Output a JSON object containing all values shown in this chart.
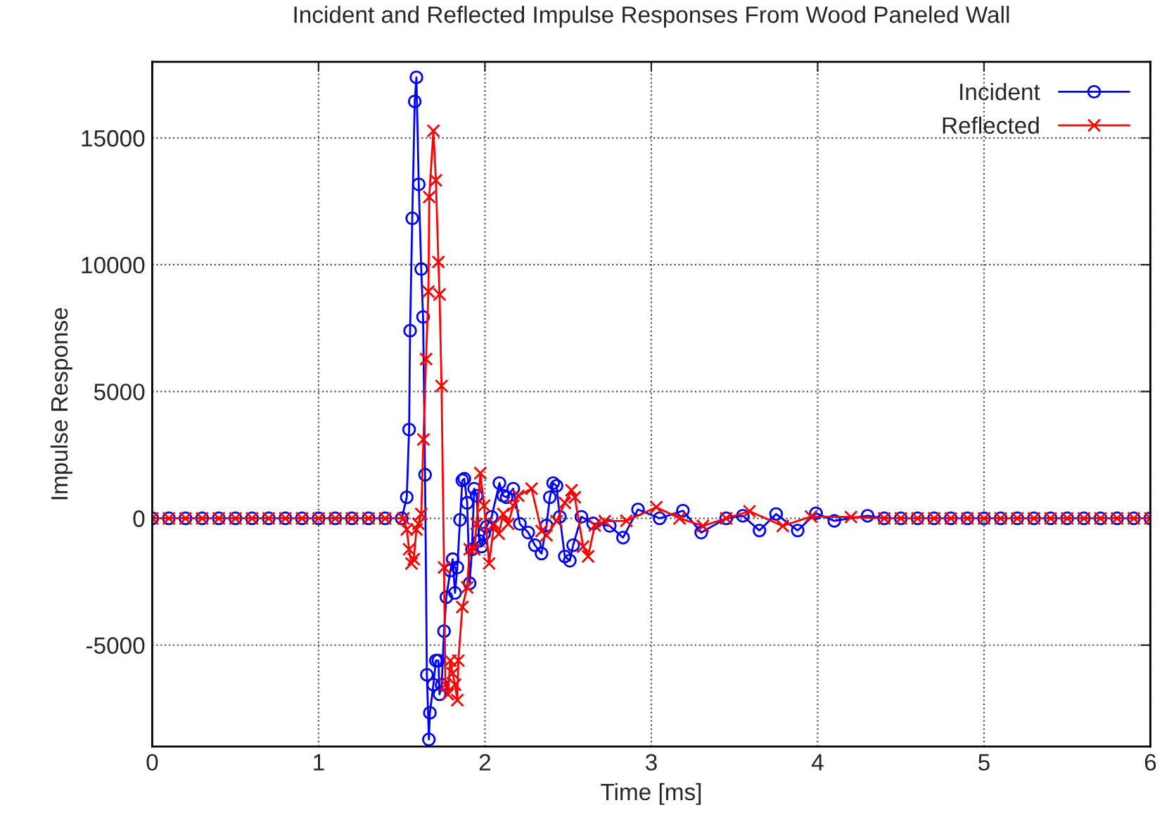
{
  "chart_data": {
    "type": "line",
    "title": "Incident and Reflected Impulse Responses From Wood Paneled Wall",
    "xlabel": "Time [ms]",
    "ylabel": "Impulse Response",
    "xlim": [
      0,
      6
    ],
    "xticks": [
      0,
      1,
      2,
      3,
      4,
      5,
      6
    ],
    "ylim": [
      -9000,
      18000
    ],
    "yticks": [
      -5000,
      0,
      5000,
      10000,
      15000
    ],
    "grid": true,
    "legend": "top right",
    "line_style": "solid",
    "series": [
      {
        "name": "Incident",
        "color": "#0000ff",
        "marker": "circle",
        "x": [
          0,
          0.1,
          0.2,
          0.3,
          0.4,
          0.5,
          0.6,
          0.7,
          0.8,
          0.9,
          1.0,
          1.1,
          1.2,
          1.3,
          1.4,
          1.5,
          1.53,
          1.544,
          1.55,
          1.563,
          1.578,
          1.588,
          1.602,
          1.617,
          1.628,
          1.64,
          1.651,
          1.663,
          1.669,
          1.69,
          1.705,
          1.72,
          1.727,
          1.74,
          1.754,
          1.768,
          1.792,
          1.806,
          1.82,
          1.834,
          1.85,
          1.864,
          1.876,
          1.893,
          1.908,
          1.922,
          1.935,
          1.95,
          1.966,
          1.98,
          1.995,
          2.01,
          2.04,
          2.087,
          2.11,
          2.13,
          2.17,
          2.21,
          2.26,
          2.3,
          2.34,
          2.37,
          2.39,
          2.41,
          2.43,
          2.45,
          2.48,
          2.51,
          2.53,
          2.58,
          2.65,
          2.75,
          2.83,
          2.92,
          3.05,
          3.19,
          3.3,
          3.45,
          3.55,
          3.65,
          3.75,
          3.88,
          3.99,
          4.1,
          4.3,
          4.4,
          4.5,
          4.6,
          4.7,
          4.8,
          4.9,
          5.0,
          5.1,
          5.2,
          5.3,
          5.4,
          5.5,
          5.6,
          5.7,
          5.8,
          5.9,
          6.0
        ],
        "values": [
          0,
          0,
          0,
          0,
          0,
          0,
          0,
          0,
          0,
          0,
          0,
          0,
          0,
          0,
          0,
          0,
          830,
          3500,
          7400,
          11830,
          16440,
          17390,
          13170,
          9830,
          7940,
          1720,
          -6170,
          -8720,
          -7670,
          -6560,
          -5610,
          -5610,
          -6940,
          -6560,
          -4450,
          -3110,
          -2060,
          -1610,
          -2940,
          -1940,
          -60,
          1500,
          1560,
          610,
          -2560,
          -1220,
          1170,
          890,
          -890,
          -1110,
          -610,
          -330,
          60,
          1390,
          890,
          830,
          1170,
          -220,
          -560,
          -1060,
          -1390,
          -280,
          830,
          1390,
          1280,
          60,
          -1500,
          -1670,
          -1060,
          60,
          -200,
          -300,
          -760,
          350,
          0,
          300,
          -560,
          0,
          100,
          -480,
          170,
          -480,
          200,
          -100,
          100,
          0,
          0,
          0,
          0,
          0,
          0,
          0,
          0,
          0,
          0,
          0,
          0,
          0,
          0,
          0,
          0,
          0
        ]
      },
      {
        "name": "Reflected",
        "color": "#ff0000",
        "marker": "cross",
        "x": [
          0,
          0.1,
          0.2,
          0.3,
          0.4,
          0.5,
          0.6,
          0.7,
          0.8,
          0.9,
          1.0,
          1.1,
          1.2,
          1.3,
          1.4,
          1.51,
          1.53,
          1.544,
          1.558,
          1.572,
          1.588,
          1.6,
          1.617,
          1.63,
          1.646,
          1.66,
          1.665,
          1.69,
          1.705,
          1.72,
          1.727,
          1.739,
          1.754,
          1.762,
          1.777,
          1.792,
          1.806,
          1.82,
          1.834,
          1.84,
          1.864,
          1.893,
          1.908,
          1.935,
          1.95,
          1.972,
          1.995,
          2.025,
          2.055,
          2.083,
          2.11,
          2.14,
          2.17,
          2.2,
          2.28,
          2.34,
          2.37,
          2.43,
          2.48,
          2.52,
          2.54,
          2.59,
          2.62,
          2.66,
          2.72,
          2.85,
          3.03,
          3.17,
          3.31,
          3.45,
          3.59,
          3.79,
          3.96,
          4.2,
          4.4,
          4.5,
          4.6,
          4.7,
          4.8,
          4.9,
          5.0,
          5.1,
          5.2,
          5.3,
          5.4,
          5.5,
          5.6,
          5.7,
          5.8,
          5.9,
          6.0
        ],
        "values": [
          0,
          0,
          0,
          0,
          0,
          0,
          0,
          0,
          0,
          0,
          0,
          0,
          0,
          0,
          0,
          0,
          -440,
          -1220,
          -1780,
          -1610,
          -440,
          -220,
          170,
          3110,
          6280,
          8940,
          12670,
          15280,
          13330,
          10110,
          8830,
          5220,
          -1940,
          -6560,
          -6940,
          -5610,
          -6110,
          -6560,
          -7170,
          -5610,
          -3500,
          -2720,
          -1220,
          -1220,
          -220,
          1780,
          500,
          -1780,
          -220,
          -610,
          170,
          -220,
          500,
          890,
          1170,
          -500,
          -670,
          -110,
          610,
          1110,
          830,
          -1110,
          -1500,
          -280,
          -110,
          -100,
          440,
          0,
          -300,
          0,
          280,
          -300,
          70,
          50,
          0,
          0,
          0,
          0,
          0,
          0,
          0,
          0,
          0,
          0,
          0,
          0,
          0,
          0,
          0,
          0,
          0
        ]
      }
    ]
  }
}
